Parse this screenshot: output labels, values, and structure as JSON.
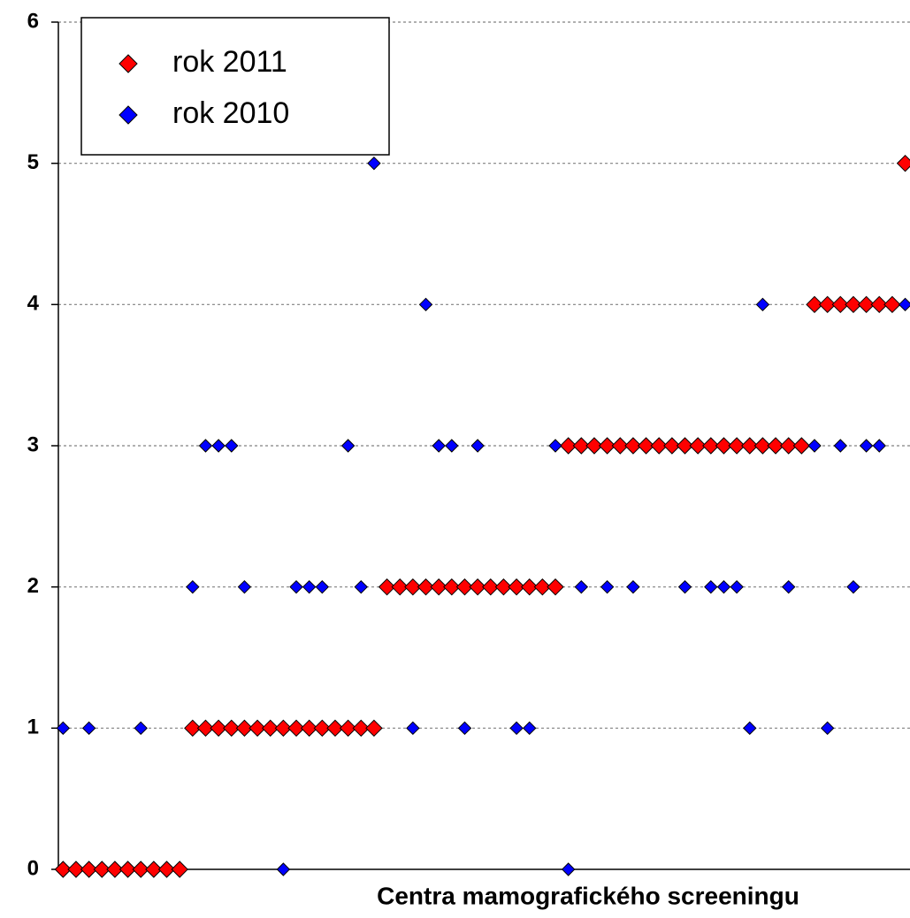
{
  "chart_data": {
    "type": "scatter",
    "xlabel": "Centra mamografického screeningu",
    "categories": [
      null,
      null,
      null,
      null,
      null,
      null,
      null,
      null,
      null,
      null,
      null,
      null,
      null,
      null,
      null,
      null,
      null,
      null,
      null,
      null,
      null,
      null,
      null,
      null,
      null,
      null,
      null,
      null,
      null,
      null,
      null,
      null,
      null,
      null,
      null,
      null,
      null,
      null,
      null,
      null,
      null,
      null,
      null,
      null,
      null,
      null,
      null,
      null,
      null,
      null,
      null,
      null,
      null,
      null,
      null,
      null,
      null,
      null,
      null,
      null,
      null,
      null,
      null,
      null,
      null,
      null
    ],
    "series": [
      {
        "name": "rok 2011",
        "color": "#ff0000",
        "values": [
          0,
          0,
          0,
          0,
          0,
          0,
          0,
          0,
          0,
          0,
          1,
          1,
          1,
          1,
          1,
          1,
          1,
          1,
          1,
          1,
          1,
          1,
          1,
          1,
          1,
          2,
          2,
          2,
          2,
          2,
          2,
          2,
          2,
          2,
          2,
          2,
          2,
          2,
          2,
          3,
          3,
          3,
          3,
          3,
          3,
          3,
          3,
          3,
          3,
          3,
          3,
          3,
          3,
          3,
          3,
          3,
          3,
          3,
          4,
          4,
          4,
          4,
          4,
          4,
          4,
          5
        ]
      },
      {
        "name": "rok 2010",
        "color": "#0000ff",
        "values": [
          1,
          null,
          1,
          null,
          null,
          null,
          1,
          null,
          null,
          null,
          2,
          3,
          3,
          3,
          2,
          null,
          null,
          0,
          2,
          2,
          2,
          null,
          3,
          2,
          5,
          null,
          null,
          1,
          4,
          3,
          3,
          1,
          3,
          null,
          null,
          1,
          1,
          null,
          3,
          0,
          2,
          null,
          2,
          null,
          2,
          null,
          null,
          null,
          2,
          null,
          2,
          2,
          2,
          1,
          4,
          null,
          2,
          null,
          3,
          1,
          3,
          2,
          3,
          3,
          null,
          4
        ]
      }
    ],
    "ylim": [
      0,
      6
    ],
    "yticks": [
      0,
      1,
      2,
      3,
      4,
      5,
      6
    ],
    "grid": true,
    "legend": "upper left"
  }
}
